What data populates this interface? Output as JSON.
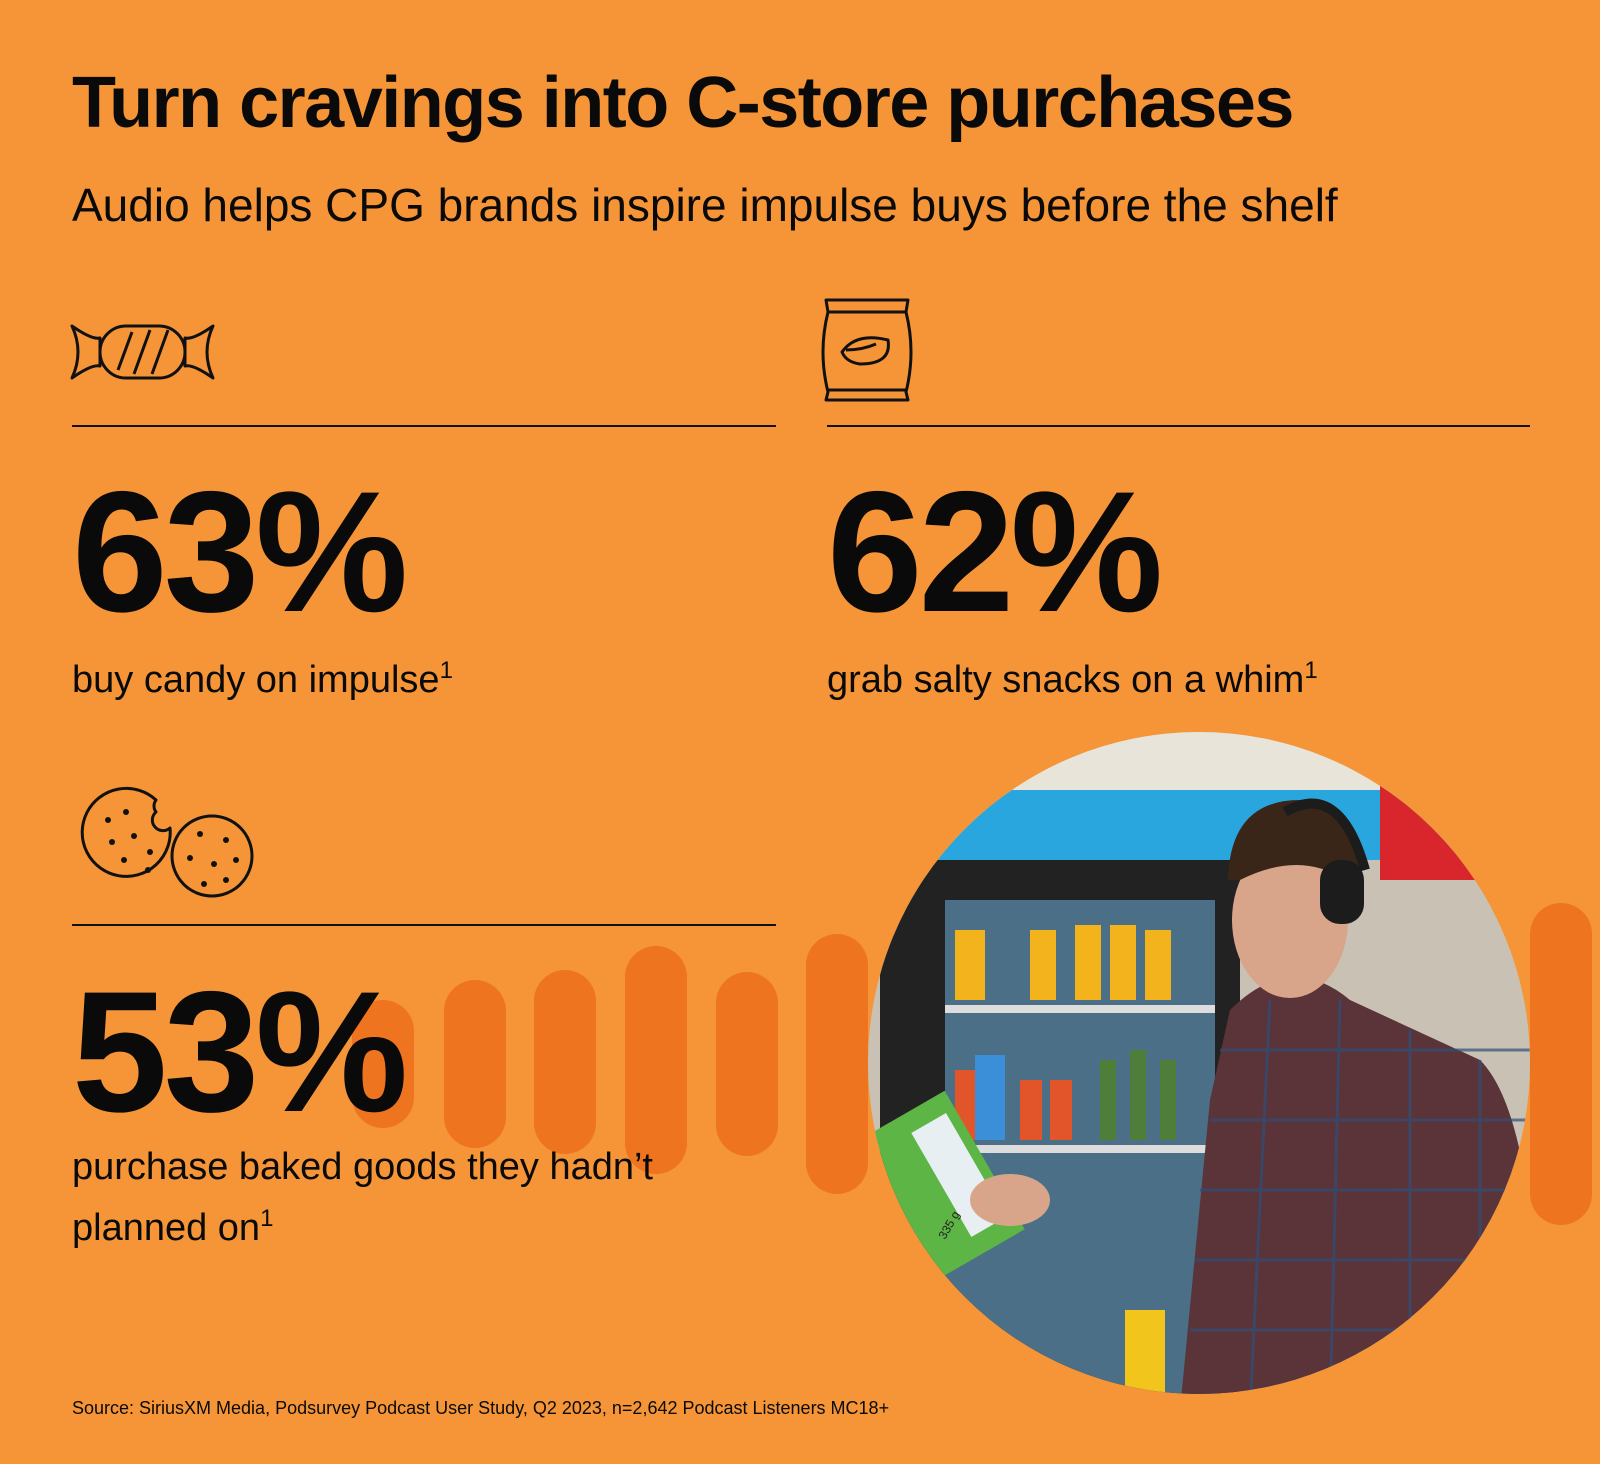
{
  "header": {
    "title": "Turn cravings into C-store purchases",
    "subtitle": "Audio helps CPG brands inspire impulse buys before the shelf"
  },
  "stats": [
    {
      "value": "63%",
      "label": "buy candy on impulse",
      "footnote": "1"
    },
    {
      "value": "62%",
      "label": "grab salty snacks on a whim",
      "footnote": "1"
    },
    {
      "value": "53%",
      "label": "purchase baked goods they hadn’t",
      "label_line2": "planned on",
      "footnote": "1"
    }
  ],
  "image": {
    "package_text": "335 g"
  },
  "source": "Source: SiriusXM Media, Podsurvey Podcast User Study, Q2 2023, n=2,642 Podcast Listeners MC18+"
}
